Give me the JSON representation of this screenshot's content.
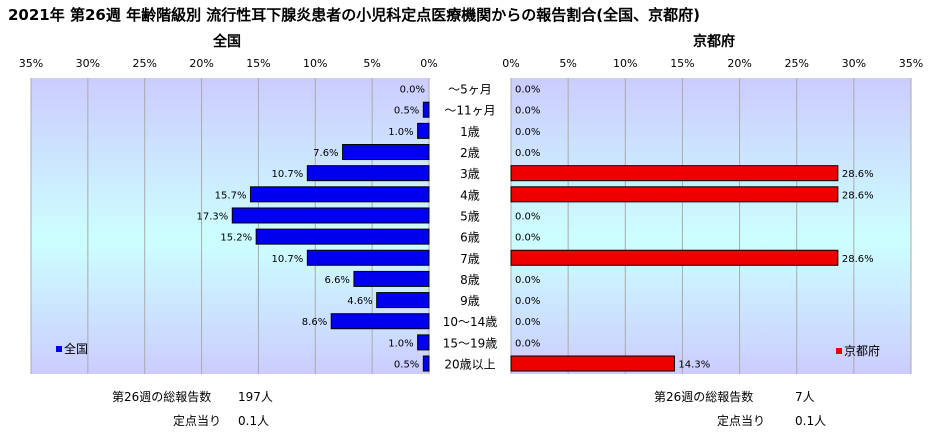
{
  "title": "2021年 第26週 年齢階級別 流行性耳下腺炎患者の小児科定点医療機関からの報告割合(全国、京都府)",
  "left_panel_title": "全国",
  "right_panel_title": "京都府",
  "colors": {
    "national": "#0000ee",
    "kyoto": "#ee0000"
  },
  "footer": {
    "left": {
      "total_label": "第26週の総報告数",
      "total_value": "197人",
      "per_label": "定点当り",
      "per_value": "0.1人"
    },
    "right": {
      "total_label": "第26週の総報告数",
      "total_value": "7人",
      "per_label": "定点当り",
      "per_value": "0.1人"
    }
  },
  "chart_data": [
    {
      "type": "bar",
      "orientation": "horizontal",
      "direction": "reversed",
      "title": "全国",
      "categories": [
        "～5ヶ月",
        "～11ヶ月",
        "1歳",
        "2歳",
        "3歳",
        "4歳",
        "5歳",
        "6歳",
        "7歳",
        "8歳",
        "9歳",
        "10～14歳",
        "15～19歳",
        "20歳以上"
      ],
      "series": [
        {
          "name": "全国",
          "values": [
            0.0,
            0.5,
            1.0,
            7.6,
            10.7,
            15.7,
            17.3,
            15.2,
            10.7,
            6.6,
            4.6,
            8.6,
            1.0,
            0.5
          ]
        }
      ],
      "data_labels": [
        "0.0%",
        "0.5%",
        "1.0%",
        "7.6%",
        "10.7%",
        "15.7%",
        "17.3%",
        "15.2%",
        "10.7%",
        "6.6%",
        "4.6%",
        "8.6%",
        "1.0%",
        "0.5%"
      ],
      "xlim": [
        0,
        35
      ],
      "xticks": [
        "35%",
        "30%",
        "25%",
        "20%",
        "15%",
        "10%",
        "5%",
        "0%"
      ],
      "grid": true,
      "legend": "bottom-left"
    },
    {
      "type": "bar",
      "orientation": "horizontal",
      "title": "京都府",
      "categories": [
        "～5ヶ月",
        "～11ヶ月",
        "1歳",
        "2歳",
        "3歳",
        "4歳",
        "5歳",
        "6歳",
        "7歳",
        "8歳",
        "9歳",
        "10～14歳",
        "15～19歳",
        "20歳以上"
      ],
      "series": [
        {
          "name": "京都府",
          "values": [
            0.0,
            0.0,
            0.0,
            0.0,
            28.6,
            28.6,
            0.0,
            0.0,
            28.6,
            0.0,
            0.0,
            0.0,
            0.0,
            14.3
          ]
        }
      ],
      "data_labels": [
        "0.0%",
        "0.0%",
        "0.0%",
        "0.0%",
        "28.6%",
        "28.6%",
        "0.0%",
        "0.0%",
        "28.6%",
        "0.0%",
        "0.0%",
        "0.0%",
        "0.0%",
        "14.3%"
      ],
      "xlim": [
        0,
        35
      ],
      "xticks": [
        "0%",
        "5%",
        "10%",
        "15%",
        "20%",
        "25%",
        "30%",
        "35%"
      ],
      "grid": true,
      "legend": "bottom-right"
    }
  ]
}
